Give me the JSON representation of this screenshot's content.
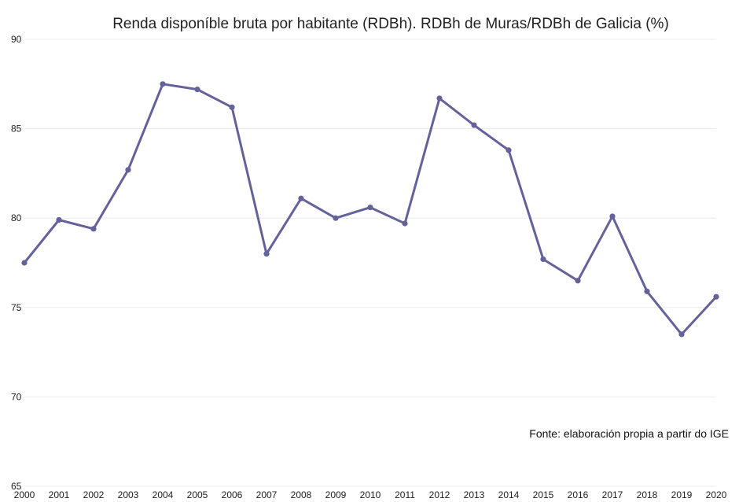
{
  "chart_data": {
    "type": "line",
    "title": "Renda disponíble bruta por habitante (RDBh). RDBh de Muras/RDBh de Galicia (%)",
    "xlabel": "",
    "ylabel": "",
    "categories": [
      "2000",
      "2001",
      "2002",
      "2003",
      "2004",
      "2005",
      "2006",
      "2007",
      "2008",
      "2009",
      "2010",
      "2011",
      "2012",
      "2013",
      "2014",
      "2015",
      "2016",
      "2017",
      "2018",
      "2019",
      "2020"
    ],
    "series": [
      {
        "values": [
          77.5,
          79.9,
          79.4,
          82.7,
          87.5,
          87.2,
          86.2,
          78.0,
          81.1,
          80.0,
          80.6,
          79.7,
          86.7,
          85.2,
          83.8,
          77.7,
          76.5,
          80.1,
          75.9,
          73.5,
          75.6
        ],
        "color": "#64629a"
      }
    ],
    "ylim": [
      65,
      90
    ],
    "yticks": [
      "65",
      "70",
      "75",
      "80",
      "85",
      "90"
    ],
    "ytick_values": [
      65,
      70,
      75,
      80,
      85,
      90
    ],
    "grid": true,
    "legend": "none",
    "source_note": "Fonte: elaboración propia a partir do IGE"
  }
}
